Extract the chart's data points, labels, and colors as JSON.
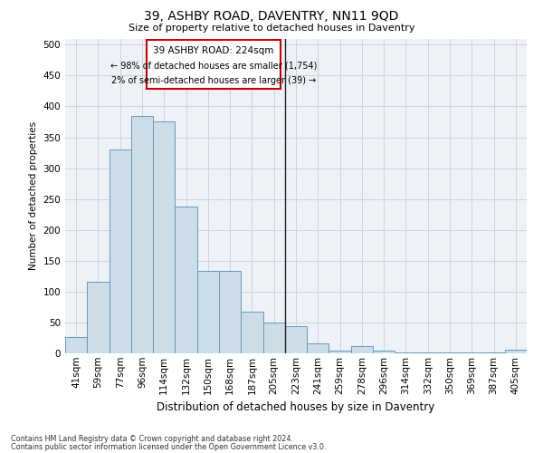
{
  "title1": "39, ASHBY ROAD, DAVENTRY, NN11 9QD",
  "title2": "Size of property relative to detached houses in Daventry",
  "xlabel": "Distribution of detached houses by size in Daventry",
  "ylabel": "Number of detached properties",
  "categories": [
    "41sqm",
    "59sqm",
    "77sqm",
    "96sqm",
    "114sqm",
    "132sqm",
    "150sqm",
    "168sqm",
    "187sqm",
    "205sqm",
    "223sqm",
    "241sqm",
    "259sqm",
    "278sqm",
    "296sqm",
    "314sqm",
    "332sqm",
    "350sqm",
    "369sqm",
    "387sqm",
    "405sqm"
  ],
  "values": [
    27,
    116,
    330,
    385,
    375,
    238,
    133,
    133,
    68,
    50,
    44,
    16,
    5,
    12,
    5,
    2,
    1,
    1,
    1,
    1,
    6
  ],
  "bar_color": "#ccdde8",
  "bar_edge_color": "#6699bb",
  "annotation_title": "39 ASHBY ROAD: 224sqm",
  "annotation_line1": "← 98% of detached houses are smaller (1,754)",
  "annotation_line2": "2% of semi-detached houses are larger (39) →",
  "annotation_box_color": "#ffffff",
  "annotation_box_edge_color": "#cc0000",
  "footer1": "Contains HM Land Registry data © Crown copyright and database right 2024.",
  "footer2": "Contains public sector information licensed under the Open Government Licence v3.0.",
  "ylim": [
    0,
    510
  ],
  "yticks": [
    0,
    50,
    100,
    150,
    200,
    250,
    300,
    350,
    400,
    450,
    500
  ],
  "grid_color": "#c8d4e0",
  "background_color": "#eef2f7"
}
